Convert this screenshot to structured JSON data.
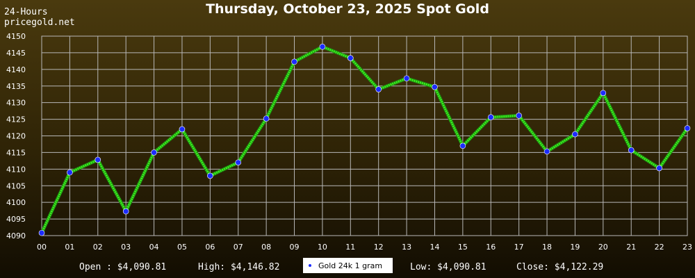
{
  "header": {
    "corner_line1": "24-Hours",
    "corner_line2": "pricegold.net"
  },
  "chart_data": {
    "type": "line",
    "title": "Thursday, October 23, 2025 Spot Gold",
    "categories": [
      "00",
      "01",
      "02",
      "03",
      "04",
      "05",
      "06",
      "07",
      "08",
      "09",
      "10",
      "11",
      "12",
      "13",
      "14",
      "15",
      "16",
      "17",
      "18",
      "19",
      "20",
      "21",
      "22",
      "23"
    ],
    "series": [
      {
        "name": "Gold 24k 1 gram",
        "values": [
          4090.81,
          4109.0,
          4112.8,
          4097.3,
          4115.0,
          4122.0,
          4108.0,
          4112.0,
          4125.2,
          4142.3,
          4146.82,
          4143.4,
          4134.0,
          4137.3,
          4134.7,
          4117.0,
          4125.6,
          4126.1,
          4115.3,
          4120.5,
          4132.9,
          4115.7,
          4110.3,
          4122.29
        ]
      }
    ],
    "yticks": [
      4090,
      4095,
      4100,
      4105,
      4110,
      4115,
      4120,
      4125,
      4130,
      4135,
      4140,
      4145,
      4150
    ],
    "ylim": [
      4090,
      4150
    ],
    "grid": true,
    "legend_position": "bottom-center",
    "line_color": "#3cf01e",
    "marker_color": "#1c2cff"
  },
  "stats": {
    "open": "Open : $4,090.81",
    "high": "High: $4,146.82",
    "low": "Low: $4,090.81",
    "close": "Close: $4,122.29"
  },
  "legend": {
    "label": "Gold 24k 1 gram"
  }
}
